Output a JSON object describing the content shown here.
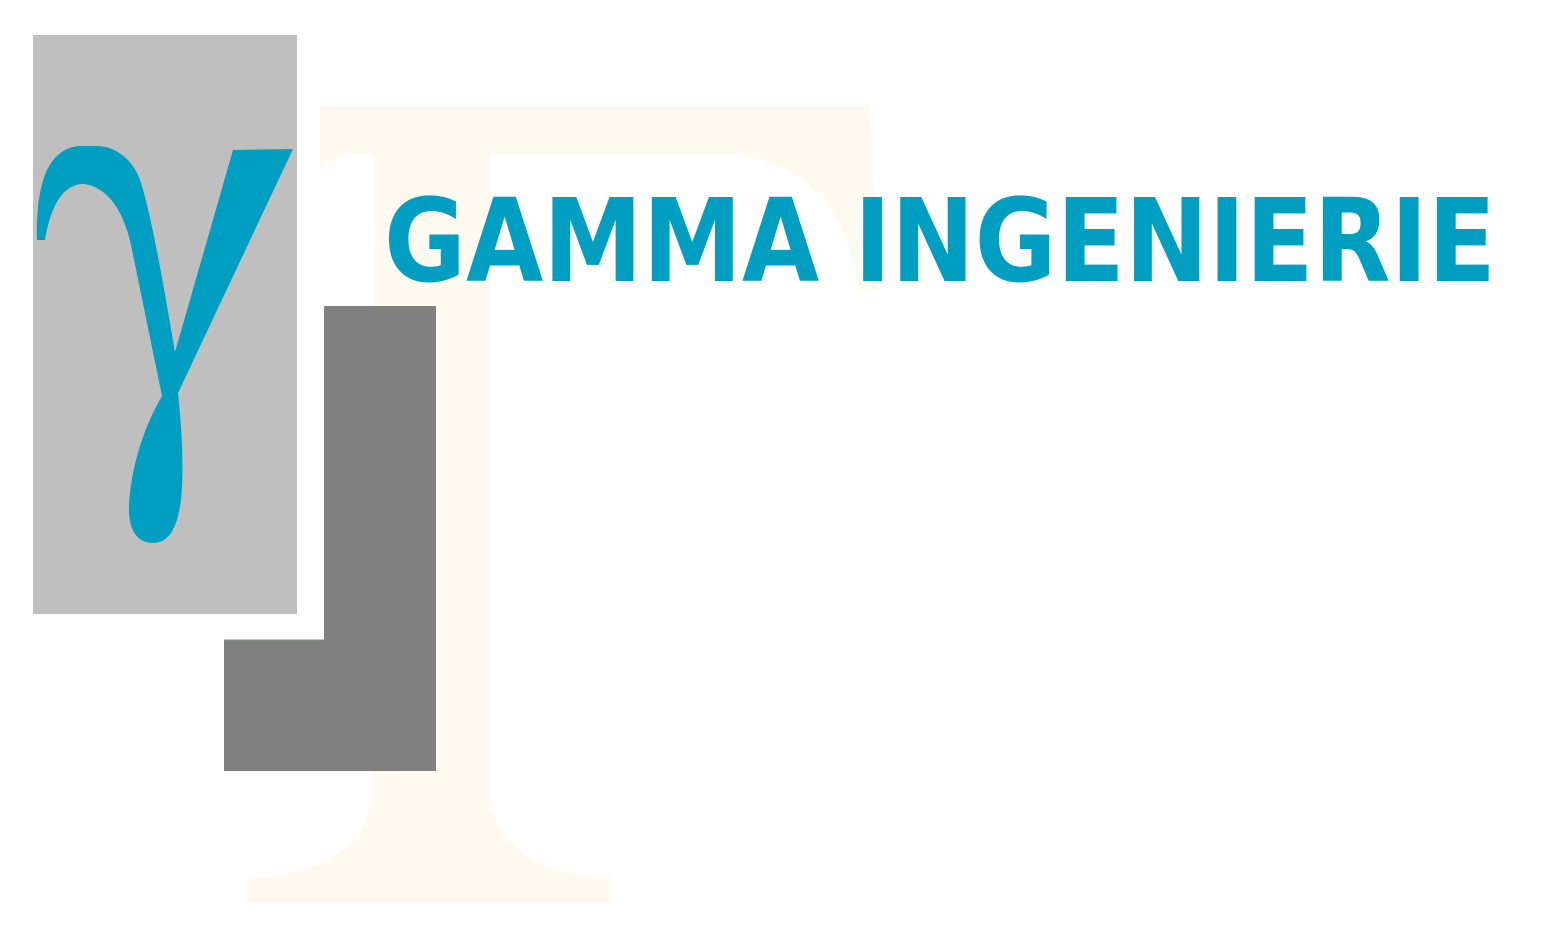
{
  "logo": {
    "company_name": "GAMMA INGENIERIE",
    "wordmark": "GAMMA INGENIERIE",
    "emblem_glyph": "γ",
    "emblem_glyph_name": "greek-gamma-letter",
    "watermark_shape": "large-serif-letter-T"
  },
  "colors": {
    "brand_blue": "#009fc2",
    "light_grey": "#bfbfbf",
    "dark_grey": "#808080",
    "watermark_cream": "#fffaf0",
    "background": "#ffffff"
  }
}
